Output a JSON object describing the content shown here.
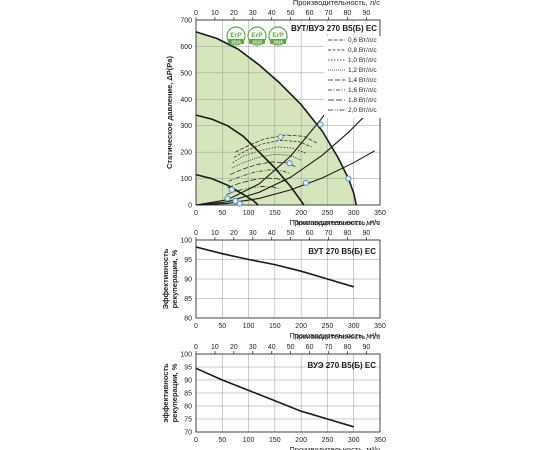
{
  "colors": {
    "zone": "#d5e6bd",
    "curve": "#1a1a1a",
    "marker_fill": "#dcecf7",
    "marker_stroke": "#3a7fb8",
    "erp": "#5aa83c"
  },
  "badges": [
    {
      "icon": "erp-2016-badge-icon",
      "top": "ErP",
      "bottom": "2016"
    },
    {
      "icon": "erp-2018-badge-icon",
      "top": "ErP",
      "bottom": "2018"
    },
    {
      "icon": "erp-2018-badge-icon",
      "top": "ErP",
      "bottom": "2018"
    }
  ],
  "chart_data": [
    {
      "type": "line",
      "title": "ВУТ/ВУЭ 270 В5(Б) ЕС",
      "xlabel": "Производительность, м³/ч",
      "x2label": "Производительность, л/с",
      "ylabel": "Статическое давление, ΔP(Pa)",
      "xlim": [
        0,
        350
      ],
      "ylim": [
        0,
        700
      ],
      "x2lim": [
        0,
        97.2
      ],
      "xticks": [
        "0",
        "50",
        "100",
        "150",
        "200",
        "250",
        "300",
        "350"
      ],
      "x2ticks": [
        "0",
        "10",
        "20",
        "30",
        "40",
        "50",
        "60",
        "70",
        "80",
        "90"
      ],
      "yticks": [
        "0",
        "100",
        "200",
        "300",
        "400",
        "500",
        "600",
        "700"
      ],
      "grid": true,
      "legend_position": "top-right",
      "legend": [
        "0,6 Вт/л/с",
        "0,8 Вт/л/с",
        "1,0 Вт/л/с",
        "1,2 Вт/л/с",
        "1,4 Вт/л/с",
        "1,6 Вт/л/с",
        "1,8 Вт/л/с",
        "2,0 Вт/л/с"
      ],
      "series": [
        {
          "points": [
            [
              0,
              655
            ],
            [
              40,
              630
            ],
            [
              80,
              590
            ],
            [
              120,
              530
            ],
            [
              160,
              460
            ],
            [
              200,
              380
            ],
            [
              240,
              280
            ],
            [
              270,
              180
            ],
            [
              290,
              100
            ],
            [
              300,
              45
            ],
            [
              305,
              0
            ]
          ]
        },
        {
          "points": [
            [
              0,
              340
            ],
            [
              30,
              325
            ],
            [
              60,
              300
            ],
            [
              90,
              260
            ],
            [
              120,
              200
            ],
            [
              150,
              140
            ],
            [
              180,
              70
            ],
            [
              200,
              15
            ],
            [
              205,
              0
            ]
          ]
        },
        {
          "points": [
            [
              0,
              115
            ],
            [
              30,
              100
            ],
            [
              60,
              75
            ],
            [
              90,
              40
            ],
            [
              110,
              15
            ],
            [
              118,
              0
            ]
          ]
        }
      ],
      "system_curves": [
        {
          "points": [
            [
              0,
              0
            ],
            [
              60,
              20
            ],
            [
              120,
              80
            ],
            [
              180,
              185
            ],
            [
              240,
              330
            ],
            [
              268,
              410
            ],
            [
              300,
              515
            ]
          ]
        },
        {
          "points": [
            [
              0,
              0
            ],
            [
              60,
              12
            ],
            [
              120,
              48
            ],
            [
              180,
              105
            ],
            [
              240,
              188
            ],
            [
              290,
              275
            ],
            [
              330,
              355
            ]
          ]
        },
        {
          "points": [
            [
              0,
              0
            ],
            [
              60,
              6
            ],
            [
              120,
              25
            ],
            [
              180,
              57
            ],
            [
              240,
              102
            ],
            [
              300,
              160
            ],
            [
              340,
              205
            ]
          ]
        }
      ],
      "spf_curves": [
        {
          "points": [
            [
              75,
              200
            ],
            [
              100,
              225
            ],
            [
              130,
              250
            ],
            [
              170,
              265
            ],
            [
              205,
              260
            ],
            [
              230,
              235
            ]
          ]
        },
        {
          "points": [
            [
              72,
              180
            ],
            [
              95,
              205
            ],
            [
              125,
              230
            ],
            [
              160,
              245
            ],
            [
              195,
              240
            ],
            [
              220,
              220
            ]
          ]
        },
        {
          "points": [
            [
              70,
              160
            ],
            [
              90,
              185
            ],
            [
              120,
              205
            ],
            [
              155,
              220
            ],
            [
              185,
              215
            ],
            [
              210,
              195
            ]
          ]
        },
        {
          "points": [
            [
              68,
              140
            ],
            [
              90,
              160
            ],
            [
              118,
              180
            ],
            [
              150,
              192
            ],
            [
              178,
              188
            ],
            [
              200,
              170
            ]
          ]
        },
        {
          "points": [
            [
              65,
              115
            ],
            [
              88,
              135
            ],
            [
              115,
              153
            ],
            [
              145,
              163
            ],
            [
              170,
              160
            ],
            [
              190,
              145
            ]
          ]
        },
        {
          "points": [
            [
              62,
              90
            ],
            [
              85,
              108
            ],
            [
              112,
              125
            ],
            [
              140,
              133
            ],
            [
              163,
              130
            ],
            [
              180,
              118
            ]
          ]
        },
        {
          "points": [
            [
              60,
              65
            ],
            [
              82,
              82
            ],
            [
              108,
              95
            ],
            [
              132,
              102
            ],
            [
              154,
              100
            ],
            [
              170,
              90
            ]
          ]
        },
        {
          "points": [
            [
              58,
              40
            ],
            [
              80,
              55
            ],
            [
              104,
              65
            ],
            [
              126,
              70
            ],
            [
              146,
              68
            ],
            [
              160,
              60
            ]
          ]
        }
      ],
      "markers": [
        [
          268,
          410
        ],
        [
          237,
          305
        ],
        [
          178,
          158
        ],
        [
          161,
          258
        ],
        [
          209,
          84
        ],
        [
          290,
          100
        ],
        [
          60,
          25
        ],
        [
          75,
          15
        ],
        [
          83,
          5
        ],
        [
          68,
          58
        ]
      ],
      "zone": [
        [
          0,
          700
        ],
        [
          0,
          0
        ],
        [
          305,
          0
        ],
        [
          300,
          45
        ],
        [
          290,
          100
        ],
        [
          270,
          180
        ],
        [
          240,
          280
        ],
        [
          200,
          380
        ],
        [
          160,
          460
        ],
        [
          120,
          530
        ],
        [
          80,
          590
        ],
        [
          40,
          630
        ],
        [
          0,
          655
        ]
      ]
    },
    {
      "type": "line",
      "title": "ВУТ 270 В5(Б) ЕС",
      "xlabel": "Производительность, м³/ч",
      "x2label": "Производительность, л/с",
      "ylabel": "Эффективность рекуперации, %",
      "xlim": [
        0,
        350
      ],
      "ylim": [
        80,
        100
      ],
      "x2lim": [
        0,
        97.2
      ],
      "xticks": [
        "0",
        "50",
        "100",
        "150",
        "200",
        "250",
        "300",
        "350"
      ],
      "x2ticks": [
        "0",
        "10",
        "20",
        "30",
        "40",
        "50",
        "60",
        "70",
        "80",
        "90"
      ],
      "yticks": [
        "80",
        "85",
        "90",
        "95",
        "100"
      ],
      "grid": true,
      "series": [
        {
          "points": [
            [
              0,
              98.2
            ],
            [
              50,
              96.5
            ],
            [
              100,
              95
            ],
            [
              150,
              93.7
            ],
            [
              200,
              92
            ],
            [
              250,
              90
            ],
            [
              300,
              88
            ]
          ]
        }
      ]
    },
    {
      "type": "line",
      "title": "ВУЭ 270 В5(Б) ЕС",
      "xlabel": "Производительность, м³/ч",
      "x2label": "Производительность, л/с",
      "ylabel": "эффективность рекуперации, %",
      "xlim": [
        0,
        350
      ],
      "ylim": [
        70,
        100
      ],
      "x2lim": [
        0,
        97.2
      ],
      "xticks": [
        "0",
        "50",
        "100",
        "150",
        "200",
        "250",
        "300",
        "350"
      ],
      "x2ticks": [
        "0",
        "10",
        "20",
        "30",
        "40",
        "50",
        "60",
        "70",
        "80",
        "90"
      ],
      "yticks": [
        "70",
        "75",
        "80",
        "85",
        "90",
        "95",
        "100"
      ],
      "grid": true,
      "series": [
        {
          "points": [
            [
              0,
              94.5
            ],
            [
              50,
              90
            ],
            [
              100,
              86
            ],
            [
              150,
              82
            ],
            [
              200,
              78
            ],
            [
              250,
              75
            ],
            [
              300,
              72
            ]
          ]
        }
      ]
    }
  ]
}
